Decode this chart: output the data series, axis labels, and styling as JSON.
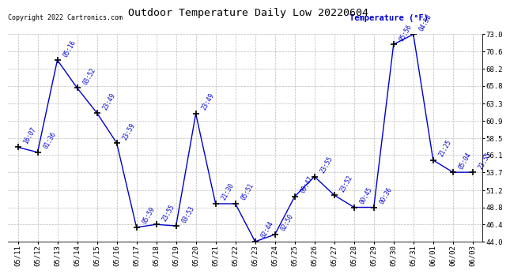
{
  "title": "Outdoor Temperature Daily Low 20220604",
  "copyright_text": "Copyright 2022 Cartronics.com",
  "legend_label": "Temperature (°F)",
  "line_color": "#0000cc",
  "background_color": "#ffffff",
  "grid_color": "#aaaaaa",
  "ylim": [
    44.0,
    73.0
  ],
  "yticks": [
    44.0,
    46.4,
    48.8,
    51.2,
    53.7,
    56.1,
    58.5,
    60.9,
    63.3,
    65.8,
    68.2,
    70.6,
    73.0
  ],
  "dates": [
    "05/11",
    "05/12",
    "05/13",
    "05/14",
    "05/15",
    "05/16",
    "05/17",
    "05/18",
    "05/19",
    "05/20",
    "05/21",
    "05/22",
    "05/23",
    "05/24",
    "05/25",
    "05/26",
    "05/27",
    "05/28",
    "05/29",
    "05/30",
    "05/31",
    "06/01",
    "06/02",
    "06/03"
  ],
  "temps": [
    57.2,
    56.5,
    69.4,
    65.5,
    62.0,
    57.8,
    46.0,
    46.4,
    46.2,
    61.9,
    49.3,
    49.3,
    44.0,
    45.0,
    50.3,
    53.1,
    50.5,
    48.8,
    48.8,
    71.6,
    73.0,
    55.4,
    53.7,
    53.7
  ],
  "time_labels": [
    "16:07",
    "01:36",
    "05:16",
    "03:52",
    "23:49",
    "23:59",
    "05:59",
    "23:55",
    "03:53",
    "23:49",
    "21:30",
    "05:51",
    "02:44",
    "02:50",
    "09:47",
    "23:55",
    "23:52",
    "00:45",
    "00:36",
    "05:56",
    "04:58",
    "21:25",
    "05:04",
    "23:55"
  ]
}
